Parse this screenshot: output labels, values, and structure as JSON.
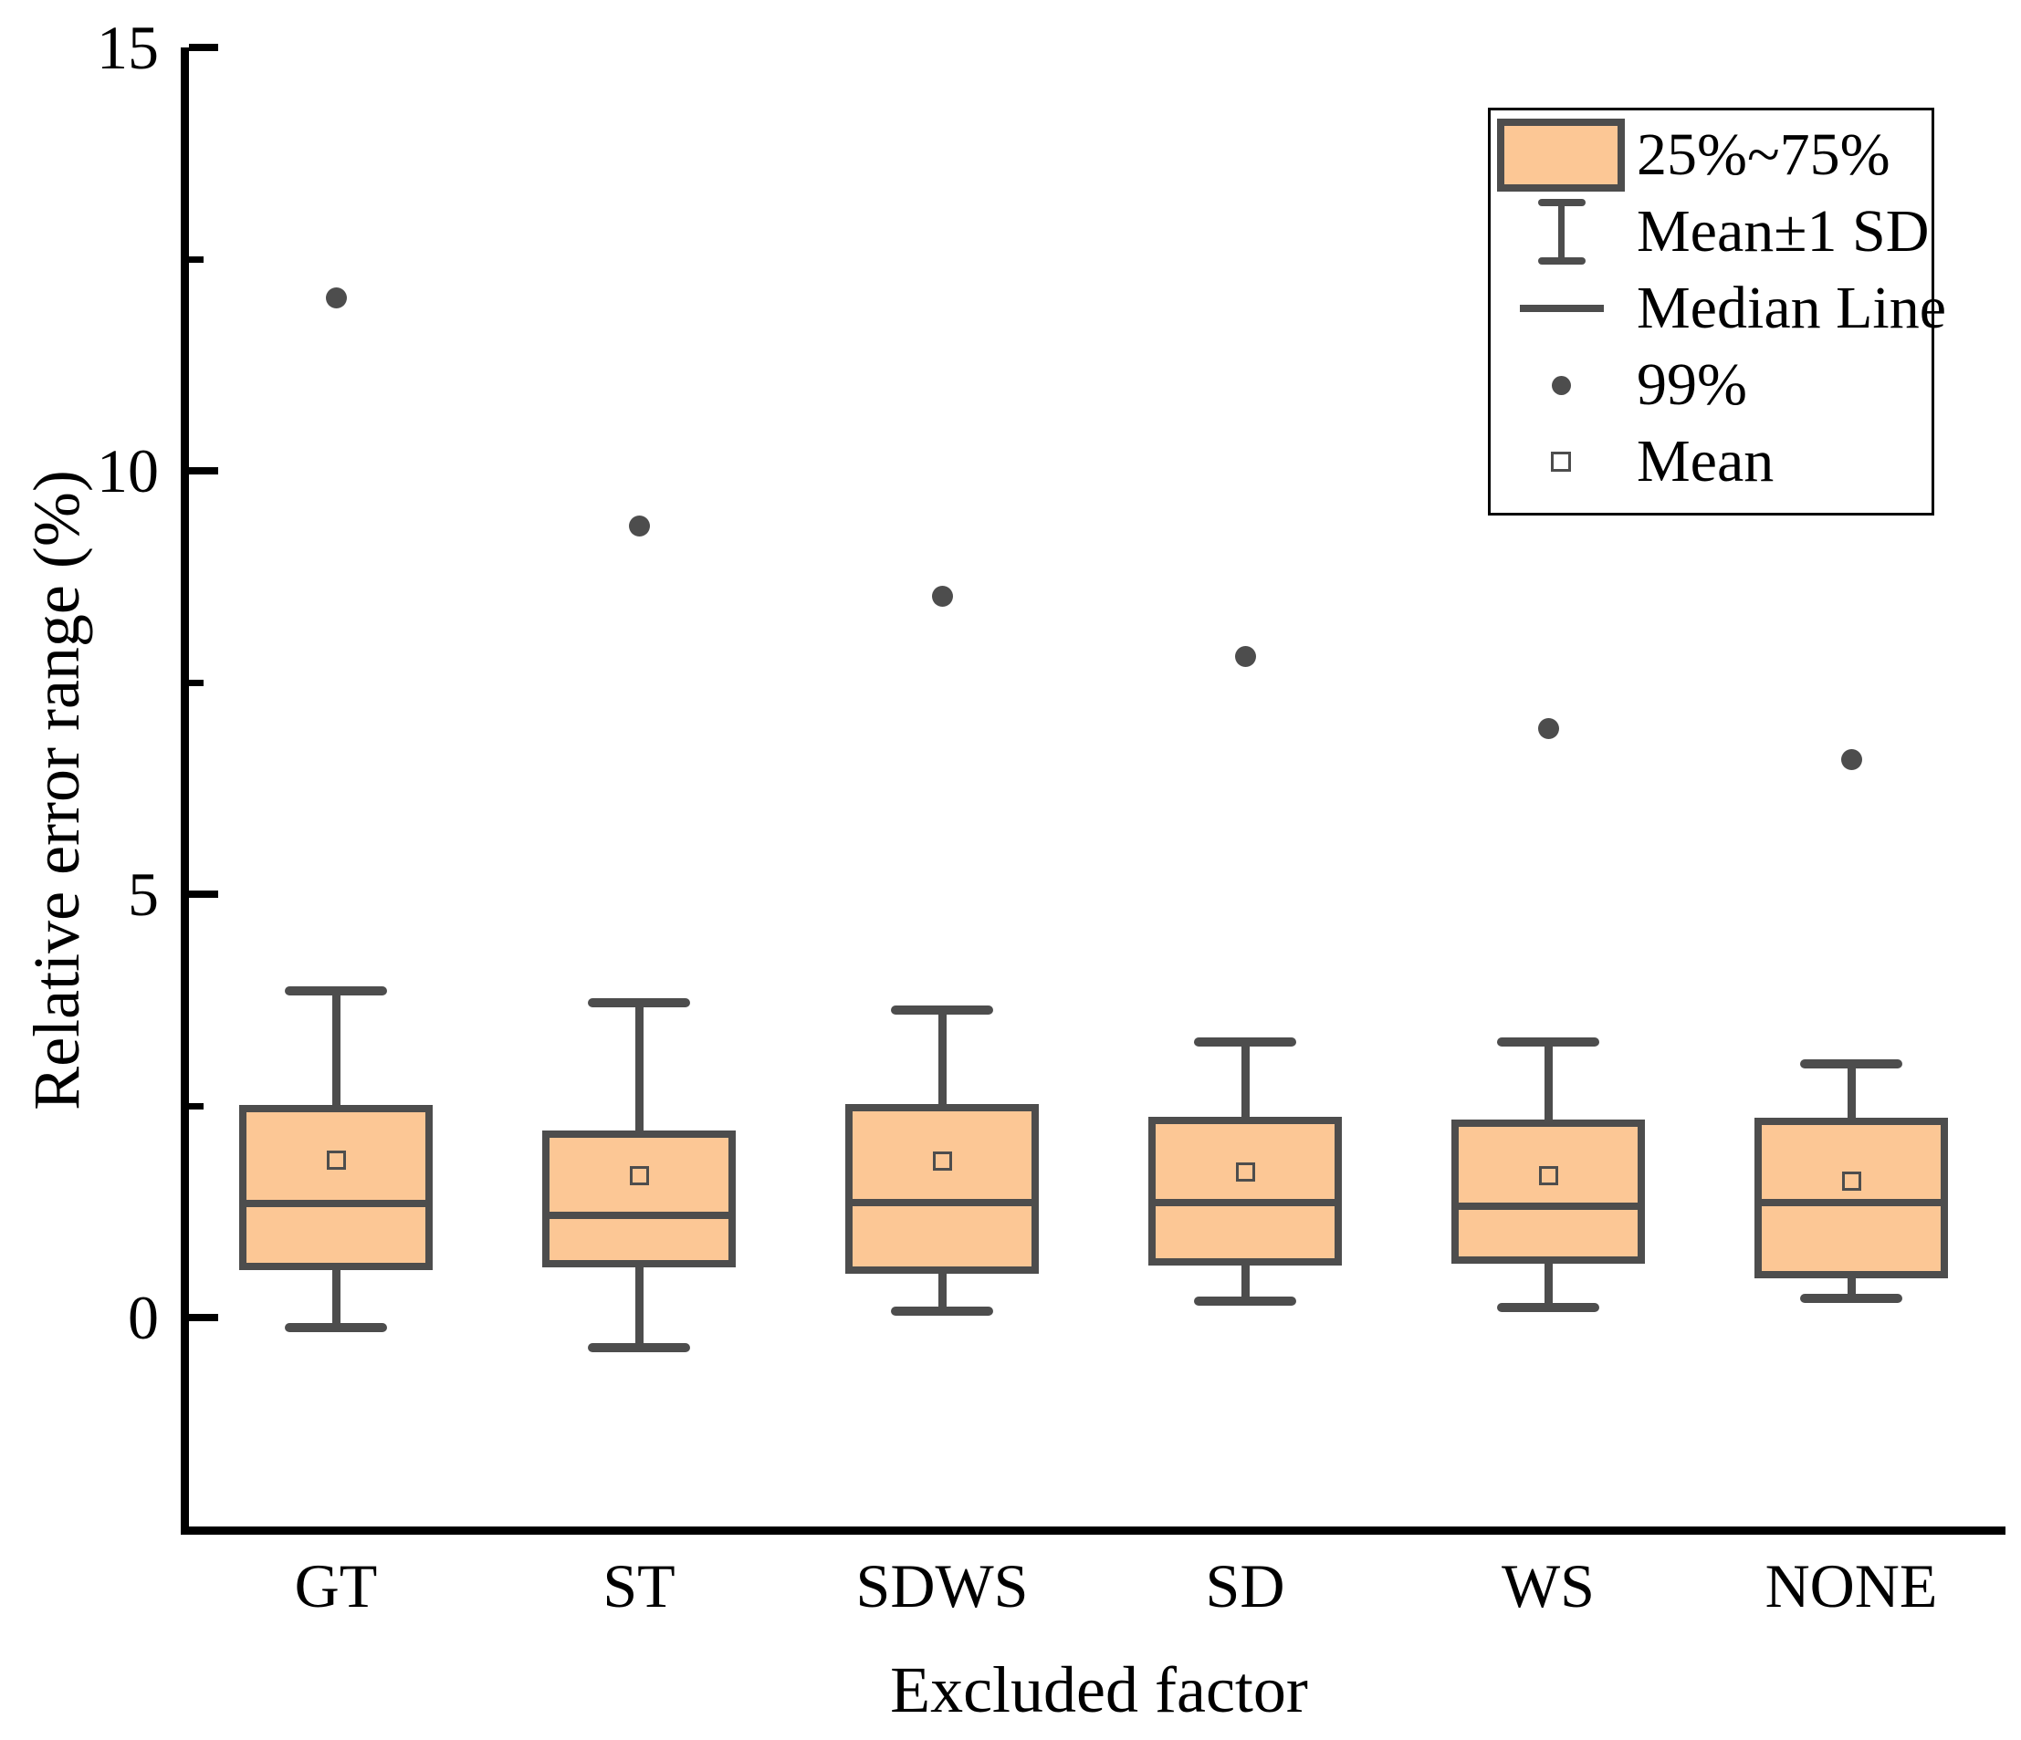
{
  "figure": {
    "y_axis": {
      "label": "Relative error range (%)",
      "major_ticks": [
        0,
        5,
        10,
        15
      ],
      "minor_ticks": [
        2.5,
        7.5,
        12.5
      ],
      "range": [
        -2.5,
        15
      ]
    },
    "x_axis": {
      "label": "Excluded factor",
      "categories": [
        "GT",
        "ST",
        "SDWS",
        "SD",
        "WS",
        "NONE"
      ]
    },
    "legend": [
      {
        "marker": "box",
        "label": "25%~75%"
      },
      {
        "marker": "whisker",
        "label": "Mean±1 SD"
      },
      {
        "marker": "median-line",
        "label": "Median Line"
      },
      {
        "marker": "dot",
        "label": "99%"
      },
      {
        "marker": "open-square",
        "label": "Mean"
      }
    ],
    "colors": {
      "box_fill": "#FCC795",
      "stroke": "#4D4D4D",
      "axis": "#000000",
      "background": "#FFFFFF"
    }
  },
  "chart_data": {
    "type": "boxplot",
    "title": "",
    "xlabel": "Excluded factor",
    "ylabel": "Relative error range (%)",
    "ylim": [
      -2.5,
      15
    ],
    "y_major_ticks": [
      0,
      5,
      10,
      15
    ],
    "y_minor_ticks": [
      2.5,
      7.5,
      12.5
    ],
    "grid": false,
    "legend_position": "top-right",
    "categories": [
      "GT",
      "ST",
      "SDWS",
      "SD",
      "WS",
      "NONE"
    ],
    "series": [
      {
        "category": "GT",
        "whisker_high": 3.86,
        "q3": 2.47,
        "mean": 1.86,
        "median": 1.35,
        "q1": 0.6,
        "whisker_low": -0.12,
        "p99": 12.05
      },
      {
        "category": "ST",
        "whisker_high": 3.72,
        "q3": 2.17,
        "mean": 1.68,
        "median": 1.21,
        "q1": 0.64,
        "whisker_low": -0.36,
        "p99": 9.35
      },
      {
        "category": "SDWS",
        "whisker_high": 3.63,
        "q3": 2.48,
        "mean": 1.85,
        "median": 1.36,
        "q1": 0.56,
        "whisker_low": 0.08,
        "p99": 8.52
      },
      {
        "category": "SD",
        "whisker_high": 3.25,
        "q3": 2.33,
        "mean": 1.72,
        "median": 1.36,
        "q1": 0.66,
        "whisker_low": 0.19,
        "p99": 7.81
      },
      {
        "category": "WS",
        "whisker_high": 3.25,
        "q3": 2.29,
        "mean": 1.68,
        "median": 1.32,
        "q1": 0.68,
        "whisker_low": 0.12,
        "p99": 6.96
      },
      {
        "category": "NONE",
        "whisker_high": 3.0,
        "q3": 2.32,
        "mean": 1.62,
        "median": 1.36,
        "q1": 0.51,
        "whisker_low": 0.23,
        "p99": 6.6
      }
    ]
  }
}
